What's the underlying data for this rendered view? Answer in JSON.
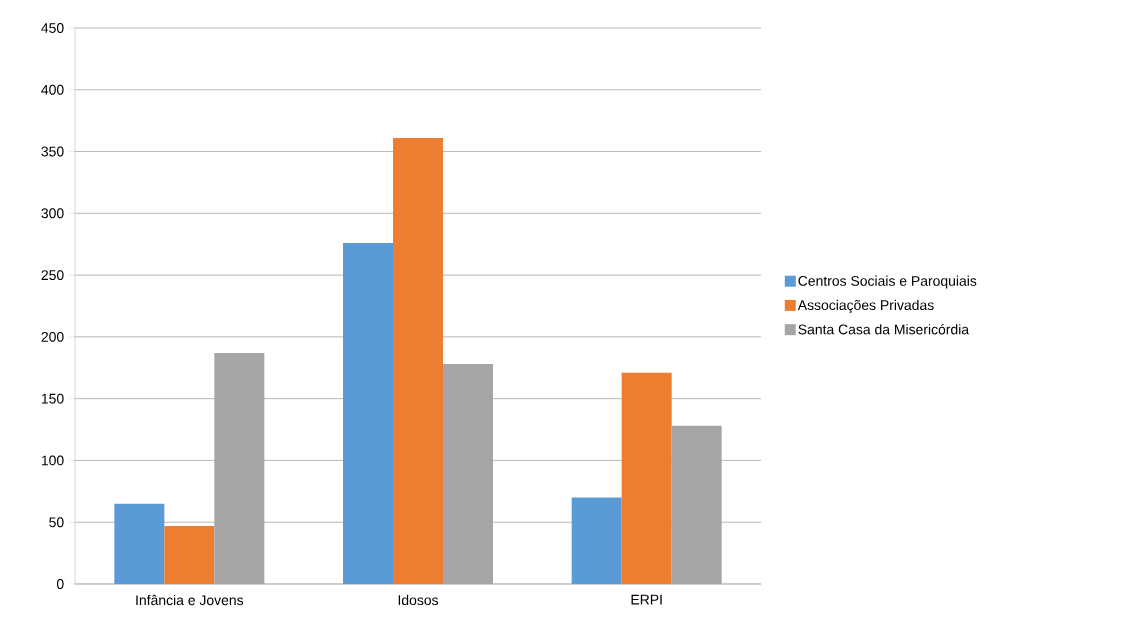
{
  "chart_data": {
    "type": "bar",
    "categories": [
      "Infância e Jovens",
      "Idosos",
      "ERPI"
    ],
    "series": [
      {
        "name": "Centros Sociais e Paroquiais",
        "color": "#5b9bd5",
        "values": [
          65,
          276,
          70
        ]
      },
      {
        "name": "Associações Privadas",
        "color": "#ed7d31",
        "values": [
          47,
          361,
          171
        ]
      },
      {
        "name": "Santa Casa da Misericórdia",
        "color": "#a5a5a5",
        "values": [
          187,
          178,
          128
        ]
      }
    ],
    "ylim": [
      0,
      450
    ],
    "yticks": [
      0,
      50,
      100,
      150,
      200,
      250,
      300,
      350,
      400,
      450
    ],
    "grid": "y",
    "legend": "right"
  }
}
